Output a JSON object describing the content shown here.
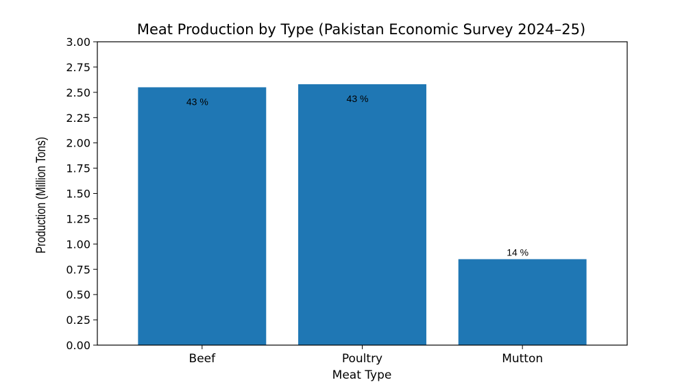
{
  "chart_data": {
    "type": "bar",
    "title": "Meat Production by Type (Pakistan Economic Survey 2024–25)",
    "xlabel": "Meat Type",
    "ylabel": "Production (Million Tons)",
    "categories": [
      "Beef",
      "Poultry",
      "Mutton"
    ],
    "values": [
      2.55,
      2.58,
      0.85
    ],
    "data_labels": [
      "43 %",
      "43 %",
      "14 %"
    ],
    "ylim": [
      0,
      3.0
    ],
    "yticks": [
      0.0,
      0.25,
      0.5,
      0.75,
      1.0,
      1.25,
      1.5,
      1.75,
      2.0,
      2.25,
      2.5,
      2.75,
      3.0
    ],
    "ytick_labels": [
      "0.00",
      "0.25",
      "0.50",
      "0.75",
      "1.00",
      "1.25",
      "1.50",
      "1.75",
      "2.00",
      "2.25",
      "2.50",
      "2.75",
      "3.00"
    ],
    "grid": false,
    "legend": "none",
    "bar_color": "#1f77b4"
  }
}
